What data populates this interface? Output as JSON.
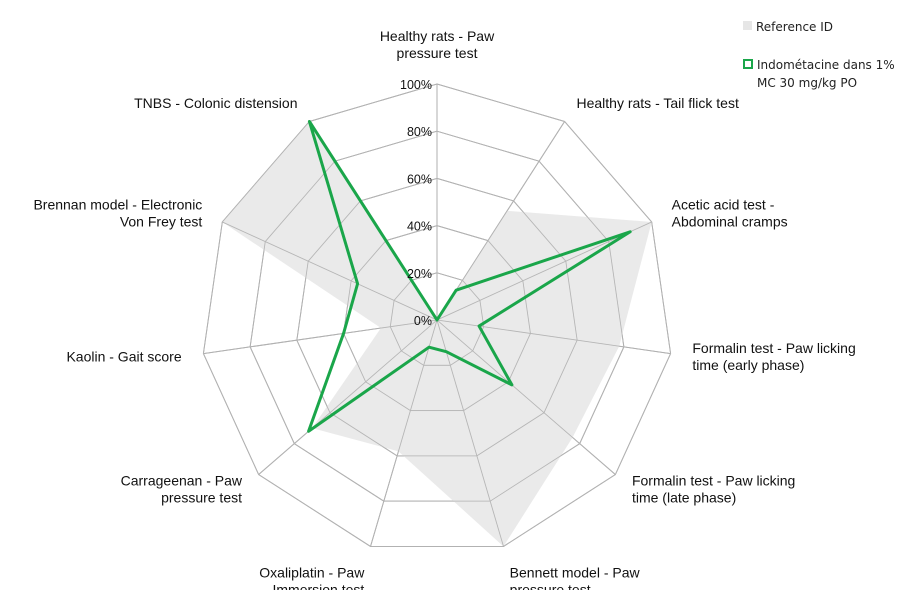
{
  "chart_data": {
    "type": "radar",
    "axes": [
      "Healthy rats - Paw\npressure test",
      "Healthy rats - Tail flick test",
      "Acetic acid test -\nAbdominal cramps",
      "Formalin test - Paw licking\ntime (early phase)",
      "Formalin test - Paw licking\ntime (late phase)",
      "Bennett model - Paw\npressure test",
      "Oxaliplatin - Paw\nImmersion test",
      "Carrageenan - Paw\npressure test",
      "Kaolin - Gait score",
      "Brennan model - Electronic\nVon Frey test",
      "TNBS - Colonic distension"
    ],
    "radial_ticks": [
      "0%",
      "20%",
      "40%",
      "60%",
      "80%",
      "100%"
    ],
    "radial_range": [
      0,
      100
    ],
    "series": [
      {
        "name": "Reference ID",
        "style": "filled-area",
        "color": "#e6e6e6",
        "values": [
          0,
          55,
          100,
          78,
          76,
          100,
          58,
          70,
          24,
          100,
          100
        ]
      },
      {
        "name": "Indométacine dans 1% MC 30 mg/kg PO",
        "style": "line",
        "color": "#1aa64a",
        "values": [
          0,
          15,
          90,
          18,
          42,
          14,
          12,
          72,
          40,
          37,
          100
        ]
      }
    ],
    "legend_position": "top-right"
  }
}
